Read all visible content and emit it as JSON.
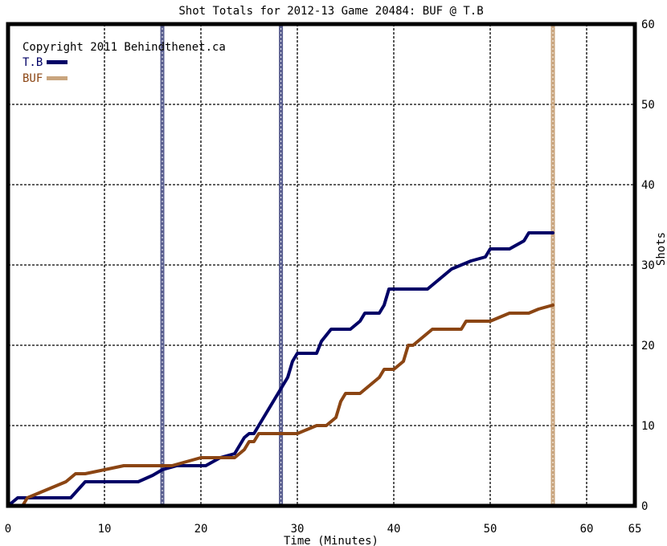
{
  "chart_data": {
    "type": "line",
    "title": "Shot Totals for 2012-13 Game 20484: BUF @ T.B",
    "xlabel": "Time (Minutes)",
    "ylabel": "Shots",
    "xlim": [
      0,
      65
    ],
    "ylim": [
      0,
      60
    ],
    "x_ticks": [
      0,
      10,
      20,
      30,
      40,
      50,
      60,
      65
    ],
    "x_tick_labels": [
      "0",
      "10",
      "20",
      "30",
      "40",
      "50",
      "60",
      "65"
    ],
    "y_ticks": [
      0,
      10,
      20,
      30,
      40,
      50,
      60
    ],
    "y_tick_labels": [
      "0",
      "10",
      "20",
      "30",
      "40",
      "50",
      "60"
    ],
    "grid": true,
    "copyright": "Copyright 2011 Behindthenet.ca",
    "legend_position": "top-left",
    "colors": {
      "tb": "#000066",
      "buf": "#8b4513",
      "tb_marker": "#5a5f90",
      "buf_marker": "#c9a57e",
      "frame": "#000000",
      "grid": "#000000"
    },
    "series": [
      {
        "name": "T.B",
        "color": "#000066",
        "points": [
          [
            0,
            0
          ],
          [
            1,
            1
          ],
          [
            2.5,
            1
          ],
          [
            5,
            1
          ],
          [
            6.5,
            1
          ],
          [
            8,
            3
          ],
          [
            10,
            3
          ],
          [
            13.5,
            3
          ],
          [
            15,
            3.8
          ],
          [
            16,
            4.5
          ],
          [
            17.5,
            5
          ],
          [
            19,
            5
          ],
          [
            20.5,
            5
          ],
          [
            22,
            6
          ],
          [
            23.5,
            6.5
          ],
          [
            24,
            7.5
          ],
          [
            24.5,
            8.5
          ],
          [
            25,
            9
          ],
          [
            25.5,
            9
          ],
          [
            26,
            10
          ],
          [
            27,
            12
          ],
          [
            28,
            14
          ],
          [
            28.5,
            15
          ],
          [
            29,
            16
          ],
          [
            29.5,
            18
          ],
          [
            30,
            19
          ],
          [
            32,
            19
          ],
          [
            32.5,
            20.5
          ],
          [
            33.5,
            22
          ],
          [
            35.5,
            22
          ],
          [
            36.5,
            23
          ],
          [
            37,
            24
          ],
          [
            38.5,
            24
          ],
          [
            39,
            25
          ],
          [
            39.5,
            27
          ],
          [
            41,
            27
          ],
          [
            43.5,
            27
          ],
          [
            45,
            28.5
          ],
          [
            46,
            29.5
          ],
          [
            47,
            30
          ],
          [
            48,
            30.5
          ],
          [
            49.5,
            31
          ],
          [
            50,
            32
          ],
          [
            52,
            32
          ],
          [
            53.5,
            33
          ],
          [
            54,
            34
          ],
          [
            56.5,
            34
          ]
        ]
      },
      {
        "name": "BUF",
        "color": "#8b4513",
        "points": [
          [
            0,
            0
          ],
          [
            1.5,
            0
          ],
          [
            2,
            1
          ],
          [
            4,
            2
          ],
          [
            6,
            3
          ],
          [
            7,
            4
          ],
          [
            8,
            4
          ],
          [
            10,
            4.5
          ],
          [
            12,
            5
          ],
          [
            13.5,
            5
          ],
          [
            17,
            5
          ],
          [
            20,
            6
          ],
          [
            23.5,
            6
          ],
          [
            24.5,
            7
          ],
          [
            25,
            8
          ],
          [
            25.5,
            8
          ],
          [
            26,
            9
          ],
          [
            28,
            9
          ],
          [
            30,
            9
          ],
          [
            31,
            9.5
          ],
          [
            32,
            10
          ],
          [
            33,
            10
          ],
          [
            34,
            11
          ],
          [
            34.5,
            13
          ],
          [
            35,
            14
          ],
          [
            36.5,
            14
          ],
          [
            37.5,
            15
          ],
          [
            38.5,
            16
          ],
          [
            39,
            17
          ],
          [
            40,
            17
          ],
          [
            41,
            18
          ],
          [
            41.5,
            20
          ],
          [
            42,
            20
          ],
          [
            43,
            21
          ],
          [
            44,
            22
          ],
          [
            47,
            22
          ],
          [
            47.5,
            23
          ],
          [
            50,
            23
          ],
          [
            52,
            24
          ],
          [
            54,
            24
          ],
          [
            55,
            24.5
          ],
          [
            56.5,
            25
          ]
        ]
      }
    ],
    "period_markers": [
      {
        "x": 16,
        "series": "T.B"
      },
      {
        "x": 28.3,
        "series": "T.B"
      },
      {
        "x": 56.5,
        "series": "BUF"
      }
    ]
  }
}
